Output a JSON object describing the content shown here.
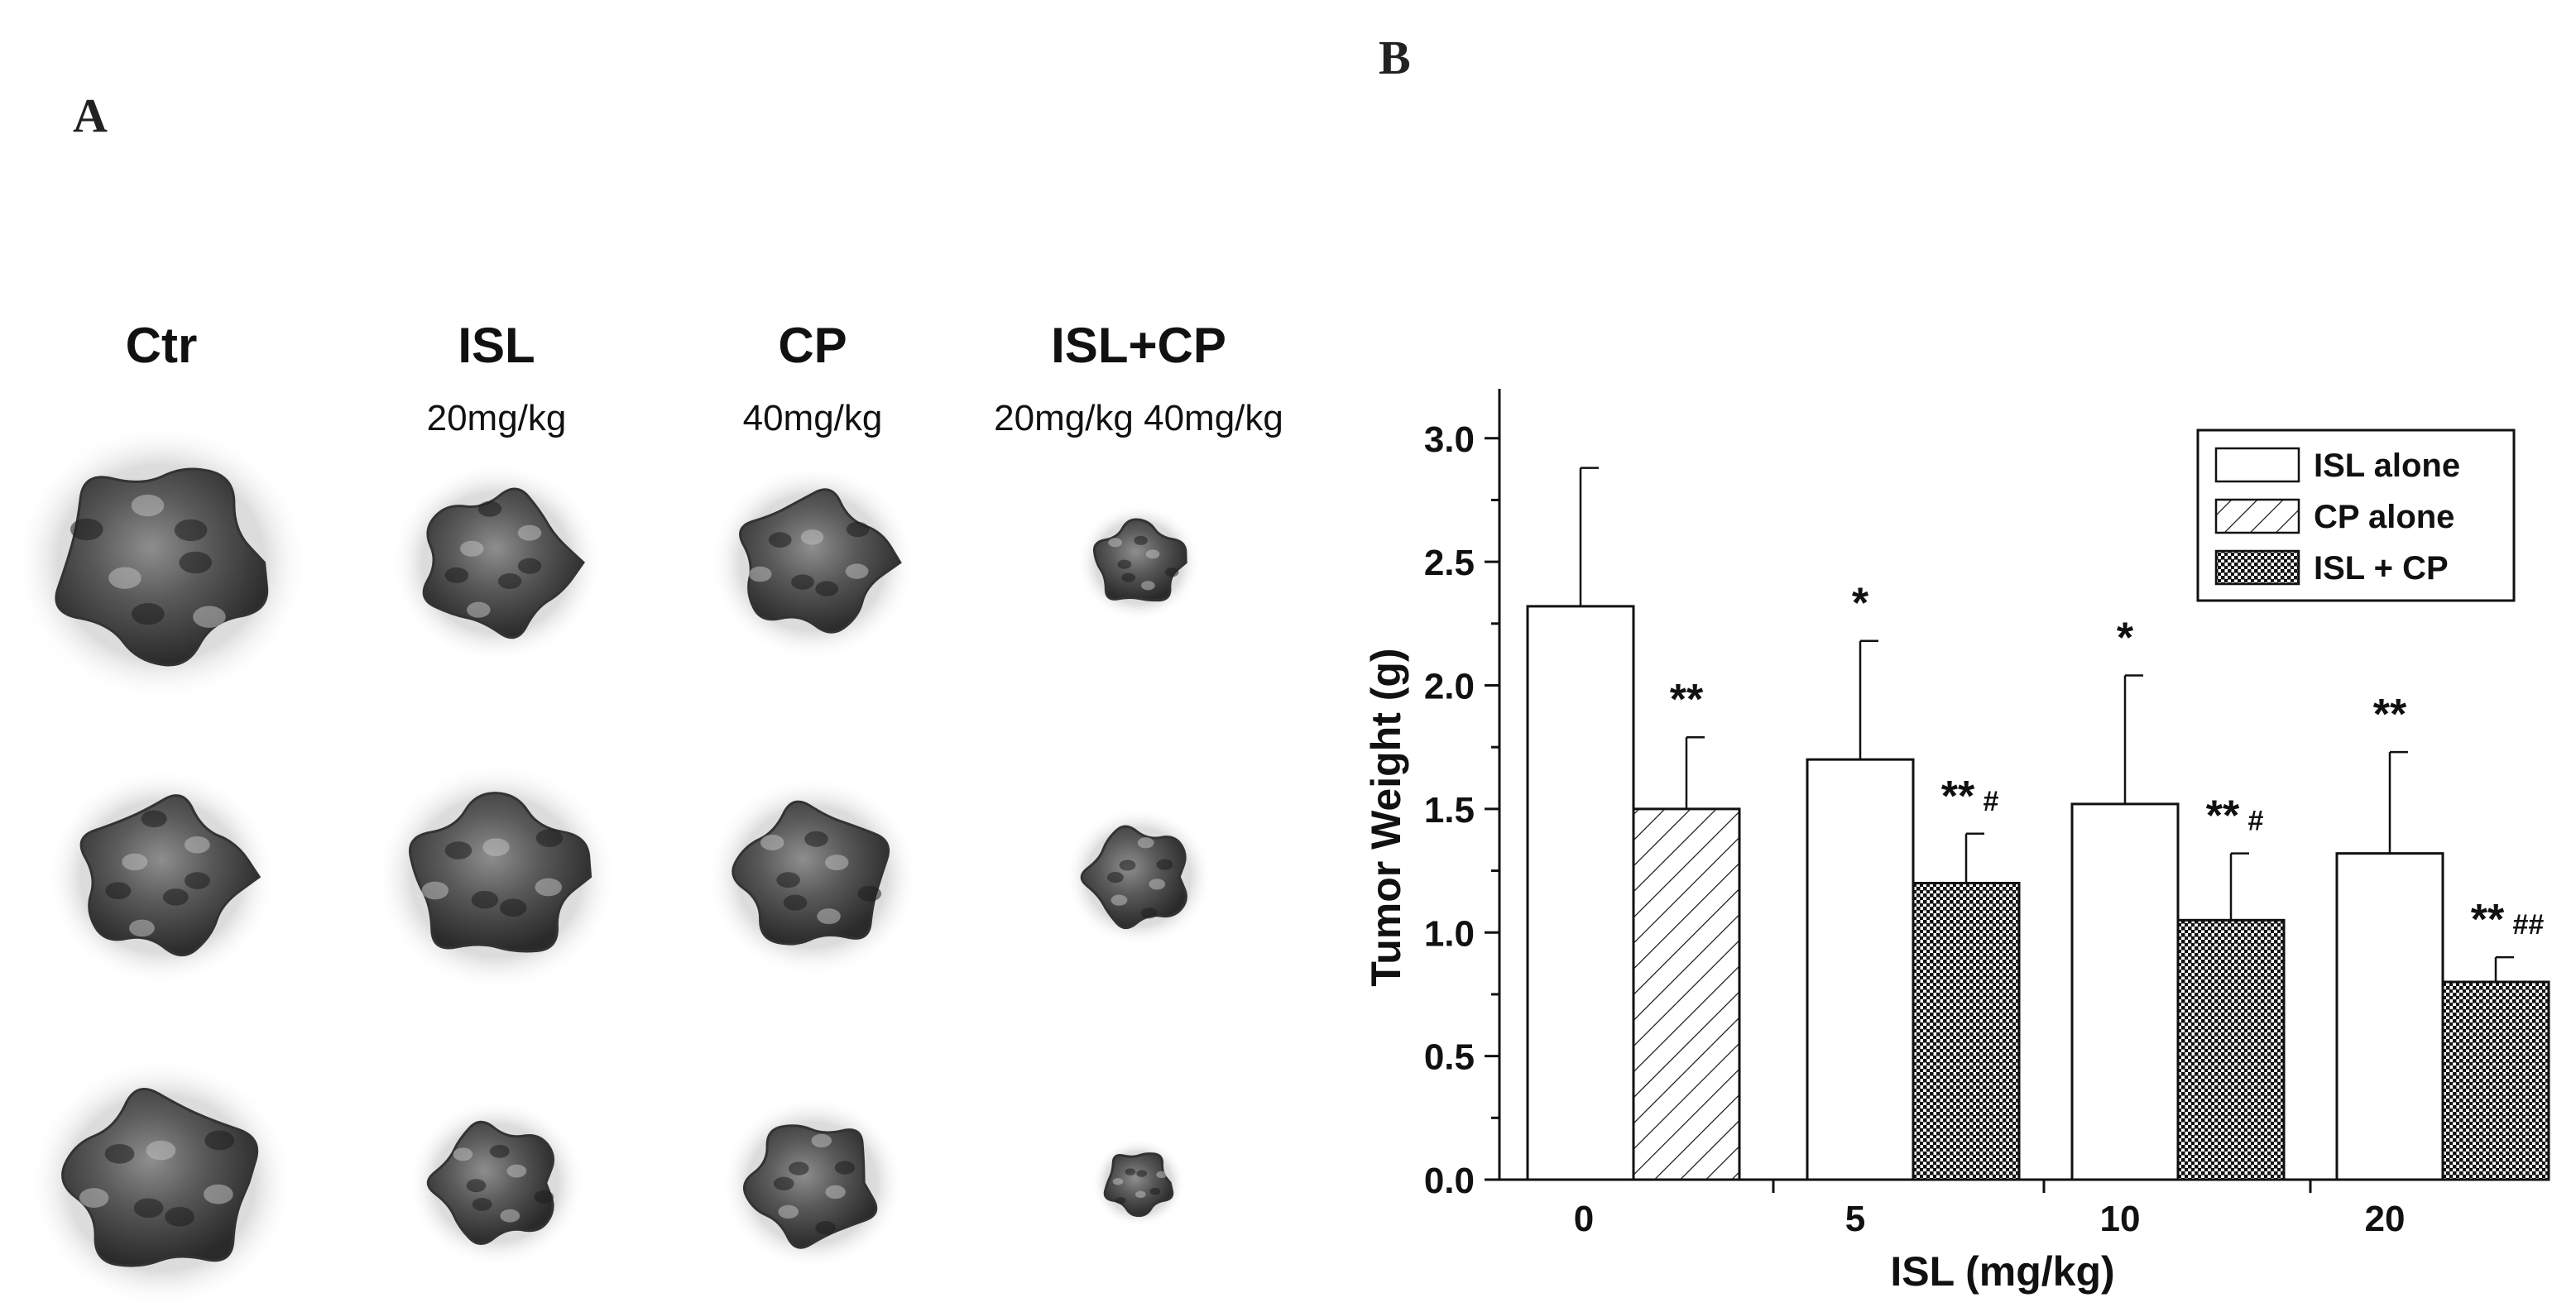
{
  "panels": {
    "a_label": "A",
    "b_label": "B"
  },
  "photo": {
    "columns": [
      {
        "title": "Ctr",
        "dose": ""
      },
      {
        "title": "ISL",
        "dose": "20mg/kg"
      },
      {
        "title": "CP",
        "dose": "40mg/kg"
      },
      {
        "title": "ISL+CP",
        "dose": "20mg/kg 40mg/kg"
      }
    ],
    "tumor_samples": [
      [
        {
          "group": "Ctr",
          "rel_size": 1.0
        },
        {
          "group": "ISL",
          "rel_size": 0.72
        },
        {
          "group": "CP",
          "rel_size": 0.7
        },
        {
          "group": "ISL+CP",
          "rel_size": 0.42
        }
      ],
      [
        {
          "group": "Ctr",
          "rel_size": 0.78
        },
        {
          "group": "ISL",
          "rel_size": 0.82
        },
        {
          "group": "CP",
          "rel_size": 0.72
        },
        {
          "group": "ISL+CP",
          "rel_size": 0.5
        }
      ],
      [
        {
          "group": "Ctr",
          "rel_size": 0.9
        },
        {
          "group": "ISL",
          "rel_size": 0.6
        },
        {
          "group": "CP",
          "rel_size": 0.62
        },
        {
          "group": "ISL+CP",
          "rel_size": 0.32
        }
      ]
    ]
  },
  "chart_data": {
    "type": "bar",
    "title": "",
    "xlabel": "ISL (mg/kg)",
    "ylabel": "Tumor Weight (g)",
    "ylim": [
      0,
      3.2
    ],
    "yticks": [
      "0.0",
      "0.5",
      "1.0",
      "1.5",
      "2.0",
      "2.5",
      "3.0"
    ],
    "categories": [
      "0",
      "5",
      "10",
      "20"
    ],
    "grid": false,
    "legend_position": "top-right",
    "legend": [
      "ISL alone",
      "CP alone",
      "ISL + CP"
    ],
    "bars": [
      {
        "category": "0",
        "series": "ISL alone",
        "value": 2.32,
        "error": 0.56,
        "annotation": "",
        "sub": ""
      },
      {
        "category": "0",
        "series": "CP alone",
        "value": 1.5,
        "error": 0.29,
        "annotation": "**",
        "sub": ""
      },
      {
        "category": "5",
        "series": "ISL alone",
        "value": 1.7,
        "error": 0.48,
        "annotation": "*",
        "sub": ""
      },
      {
        "category": "5",
        "series": "ISL + CP",
        "value": 1.2,
        "error": 0.2,
        "annotation": "**",
        "sub": "#"
      },
      {
        "category": "10",
        "series": "ISL alone",
        "value": 1.52,
        "error": 0.52,
        "annotation": "*",
        "sub": ""
      },
      {
        "category": "10",
        "series": "ISL + CP",
        "value": 1.05,
        "error": 0.27,
        "annotation": "**",
        "sub": "#"
      },
      {
        "category": "20",
        "series": "ISL alone",
        "value": 1.32,
        "error": 0.41,
        "annotation": "**",
        "sub": ""
      },
      {
        "category": "20",
        "series": "ISL + CP",
        "value": 0.8,
        "error": 0.1,
        "annotation": "**",
        "sub": "##"
      }
    ]
  }
}
